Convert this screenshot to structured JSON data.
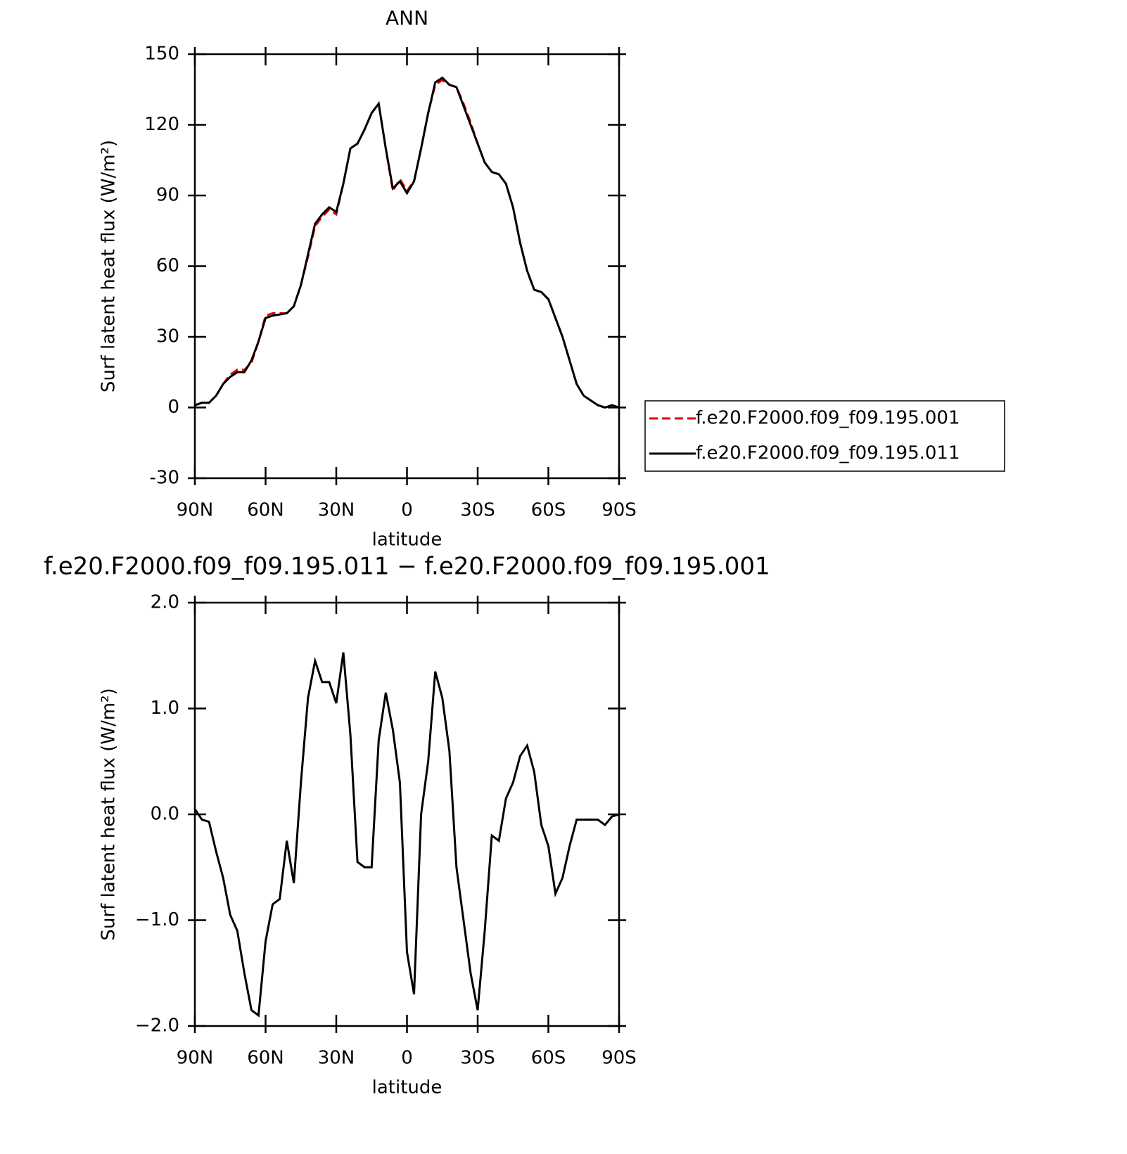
{
  "chart_data": [
    {
      "type": "line",
      "title": "ANN",
      "x_label": "latitude",
      "y_label": "Surf latent heat flux (W/m²)",
      "x": [
        90,
        87,
        84,
        81,
        78,
        75,
        72,
        69,
        66,
        63,
        60,
        57,
        54,
        51,
        48,
        45,
        42,
        39,
        36,
        33,
        30,
        27,
        24,
        21,
        18,
        15,
        12,
        9,
        6,
        3,
        0,
        -3,
        -6,
        -9,
        -12,
        -15,
        -18,
        -21,
        -24,
        -27,
        -30,
        -33,
        -36,
        -39,
        -42,
        -45,
        -48,
        -51,
        -54,
        -57,
        -60,
        -63,
        -66,
        -69,
        -72,
        -75,
        -78,
        -81,
        -84,
        -87,
        -90
      ],
      "series": [
        {
          "name": "f.e20.F2000.f09_f09.195.001",
          "color": "#e00000",
          "dashed": true,
          "values": [
            1,
            2,
            2,
            5,
            10,
            14,
            16,
            16,
            19,
            28,
            39,
            40,
            40,
            40,
            43,
            52,
            64,
            77,
            81,
            84,
            82,
            95,
            110,
            112,
            118,
            125,
            129,
            110,
            92,
            97,
            92,
            96,
            110,
            125,
            137,
            139,
            137,
            136,
            129,
            121,
            112,
            104,
            100,
            99,
            95,
            85,
            70,
            58,
            50,
            49,
            46,
            38,
            30,
            20,
            10,
            5,
            3,
            1,
            0,
            1,
            0
          ]
        },
        {
          "name": "f.e20.F2000.f09_f09.195.011",
          "color": "#000000",
          "dashed": false,
          "values": [
            1,
            2,
            2,
            5,
            10,
            13,
            15,
            15,
            20,
            28,
            38,
            39,
            39.5,
            40,
            43,
            52,
            65,
            78,
            82,
            85,
            83,
            95,
            110,
            112,
            118,
            125,
            129,
            110,
            93,
            96,
            91,
            96,
            110,
            125,
            138,
            140,
            137,
            136,
            128,
            120,
            112,
            104,
            100,
            99,
            95,
            85,
            70,
            58,
            50,
            49,
            46,
            38,
            30,
            20,
            10,
            5,
            3,
            1,
            0,
            1,
            0
          ]
        }
      ],
      "xlim": [
        90,
        -90
      ],
      "xticks": [
        {
          "value": 90,
          "label": "90N"
        },
        {
          "value": 60,
          "label": "60N"
        },
        {
          "value": 30,
          "label": "30N"
        },
        0,
        {
          "value": -30,
          "label": "30S"
        },
        {
          "value": -60,
          "label": "60S"
        },
        {
          "value": -90,
          "label": "90S"
        }
      ],
      "ylim": [
        -30,
        150
      ],
      "yticks": [
        -30,
        0,
        30,
        60,
        90,
        120,
        150
      ],
      "legend": "outside-right"
    },
    {
      "type": "line",
      "title": "f.e20.F2000.f09_f09.195.011 − f.e20.F2000.f09_f09.195.001",
      "x_label": "latitude",
      "y_label": "Surf latent heat flux (W/m²)",
      "x": [
        90,
        87,
        84,
        81,
        78,
        75,
        72,
        69,
        66,
        63,
        60,
        57,
        54,
        51,
        48,
        45,
        42,
        39,
        36,
        33,
        30,
        27,
        24,
        21,
        18,
        15,
        12,
        9,
        6,
        3,
        0,
        -3,
        -6,
        -9,
        -12,
        -15,
        -18,
        -21,
        -24,
        -27,
        -30,
        -33,
        -36,
        -39,
        -42,
        -45,
        -48,
        -51,
        -54,
        -57,
        -60,
        -63,
        -66,
        -69,
        -72,
        -75,
        -78,
        -81,
        -84,
        -87,
        -90
      ],
      "values": [
        0.05,
        -0.05,
        -0.07,
        -0.35,
        -0.6,
        -0.95,
        -1.1,
        -1.5,
        -1.85,
        -1.9,
        -1.2,
        -0.85,
        -0.8,
        -0.25,
        -0.65,
        0.3,
        1.1,
        1.45,
        1.25,
        1.25,
        1.05,
        1.53,
        0.75,
        -0.45,
        -0.5,
        -0.5,
        0.7,
        1.15,
        0.8,
        0.3,
        -1.3,
        -1.7,
        0.0,
        0.5,
        1.35,
        1.1,
        0.6,
        -0.5,
        -1.0,
        -1.5,
        -1.85,
        -1.1,
        -0.2,
        -0.25,
        0.15,
        0.3,
        0.55,
        0.65,
        0.4,
        -0.1,
        -0.3,
        -0.75,
        -0.6,
        -0.3,
        -0.05,
        -0.05,
        -0.05,
        -0.05,
        -0.1,
        -0.02,
        0
      ],
      "color": "#000000",
      "xlim": [
        90,
        -90
      ],
      "xticks": [
        {
          "value": 90,
          "label": "90N"
        },
        {
          "value": 60,
          "label": "60N"
        },
        {
          "value": 30,
          "label": "30N"
        },
        0,
        {
          "value": -30,
          "label": "30S"
        },
        {
          "value": -60,
          "label": "60S"
        },
        {
          "value": -90,
          "label": "90S"
        }
      ],
      "ylim": [
        -2,
        2
      ],
      "yticks": [
        {
          "value": -2,
          "label": "−2.0"
        },
        {
          "value": -1,
          "label": "−1.0"
        },
        {
          "value": 0,
          "label": "0.0"
        },
        {
          "value": 1,
          "label": "1.0"
        },
        {
          "value": 2,
          "label": "2.0"
        }
      ]
    }
  ]
}
